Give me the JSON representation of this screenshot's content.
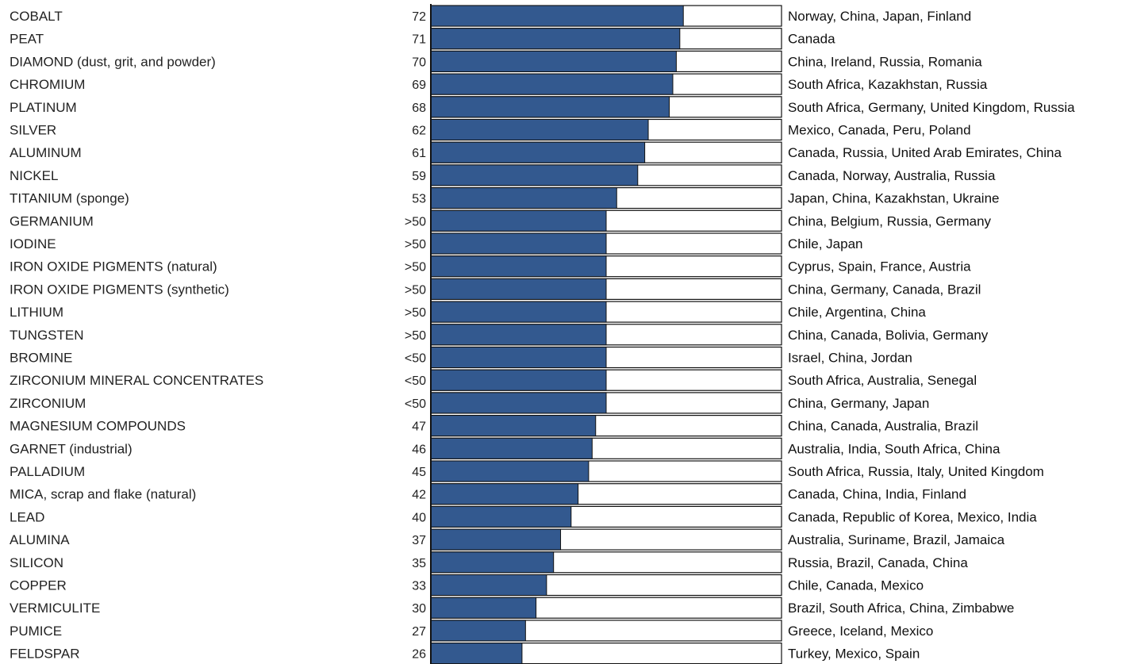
{
  "chart_data": {
    "type": "bar",
    "orientation": "horizontal",
    "bar_color": "#33598f",
    "track_color": "#ffffff",
    "border_color": "#111111",
    "xlim": [
      0,
      100
    ],
    "grid": false,
    "rows": [
      {
        "mineral": "COBALT",
        "label": "72",
        "value": 72,
        "sources": "Norway, China, Japan, Finland"
      },
      {
        "mineral": "PEAT",
        "label": "71",
        "value": 71,
        "sources": "Canada"
      },
      {
        "mineral": "DIAMOND (dust, grit, and powder)",
        "label": "70",
        "value": 70,
        "sources": "China, Ireland, Russia, Romania"
      },
      {
        "mineral": "CHROMIUM",
        "label": "69",
        "value": 69,
        "sources": "South Africa, Kazakhstan, Russia"
      },
      {
        "mineral": "PLATINUM",
        "label": "68",
        "value": 68,
        "sources": "South Africa, Germany, United Kingdom, Russia"
      },
      {
        "mineral": "SILVER",
        "label": "62",
        "value": 62,
        "sources": "Mexico, Canada, Peru, Poland"
      },
      {
        "mineral": "ALUMINUM",
        "label": "61",
        "value": 61,
        "sources": "Canada, Russia, United Arab Emirates, China"
      },
      {
        "mineral": "NICKEL",
        "label": "59",
        "value": 59,
        "sources": "Canada, Norway, Australia, Russia"
      },
      {
        "mineral": "TITANIUM (sponge)",
        "label": "53",
        "value": 53,
        "sources": "Japan, China, Kazakhstan, Ukraine"
      },
      {
        "mineral": "GERMANIUM",
        "label": ">50",
        "value": 50,
        "sources": "China, Belgium, Russia, Germany"
      },
      {
        "mineral": "IODINE",
        "label": ">50",
        "value": 50,
        "sources": "Chile, Japan"
      },
      {
        "mineral": "IRON OXIDE PIGMENTS (natural)",
        "label": ">50",
        "value": 50,
        "sources": "Cyprus, Spain, France, Austria"
      },
      {
        "mineral": "IRON OXIDE PIGMENTS (synthetic)",
        "label": ">50",
        "value": 50,
        "sources": "China, Germany, Canada, Brazil"
      },
      {
        "mineral": "LITHIUM",
        "label": ">50",
        "value": 50,
        "sources": "Chile, Argentina, China"
      },
      {
        "mineral": "TUNGSTEN",
        "label": ">50",
        "value": 50,
        "sources": "China, Canada, Bolivia, Germany"
      },
      {
        "mineral": "BROMINE",
        "label": "<50",
        "value": 50,
        "sources": "Israel, China, Jordan"
      },
      {
        "mineral": "ZIRCONIUM MINERAL CONCENTRATES",
        "label": "<50",
        "value": 50,
        "sources": "South Africa, Australia, Senegal"
      },
      {
        "mineral": "ZIRCONIUM",
        "label": "<50",
        "value": 50,
        "sources": "China, Germany, Japan"
      },
      {
        "mineral": "MAGNESIUM COMPOUNDS",
        "label": "47",
        "value": 47,
        "sources": "China, Canada, Australia, Brazil"
      },
      {
        "mineral": "GARNET (industrial)",
        "label": "46",
        "value": 46,
        "sources": "Australia, India, South Africa, China"
      },
      {
        "mineral": "PALLADIUM",
        "label": "45",
        "value": 45,
        "sources": "South Africa, Russia, Italy, United Kingdom"
      },
      {
        "mineral": "MICA, scrap and flake (natural)",
        "label": "42",
        "value": 42,
        "sources": "Canada, China, India, Finland"
      },
      {
        "mineral": "LEAD",
        "label": "40",
        "value": 40,
        "sources": "Canada, Republic of Korea, Mexico, India"
      },
      {
        "mineral": "ALUMINA",
        "label": "37",
        "value": 37,
        "sources": "Australia, Suriname, Brazil, Jamaica"
      },
      {
        "mineral": "SILICON",
        "label": "35",
        "value": 35,
        "sources": "Russia, Brazil, Canada, China"
      },
      {
        "mineral": "COPPER",
        "label": "33",
        "value": 33,
        "sources": "Chile, Canada, Mexico"
      },
      {
        "mineral": "VERMICULITE",
        "label": "30",
        "value": 30,
        "sources": "Brazil, South Africa, China, Zimbabwe"
      },
      {
        "mineral": "PUMICE",
        "label": "27",
        "value": 27,
        "sources": "Greece, Iceland, Mexico"
      },
      {
        "mineral": "FELDSPAR",
        "label": "26",
        "value": 26,
        "sources": "Turkey, Mexico, Spain"
      }
    ]
  }
}
